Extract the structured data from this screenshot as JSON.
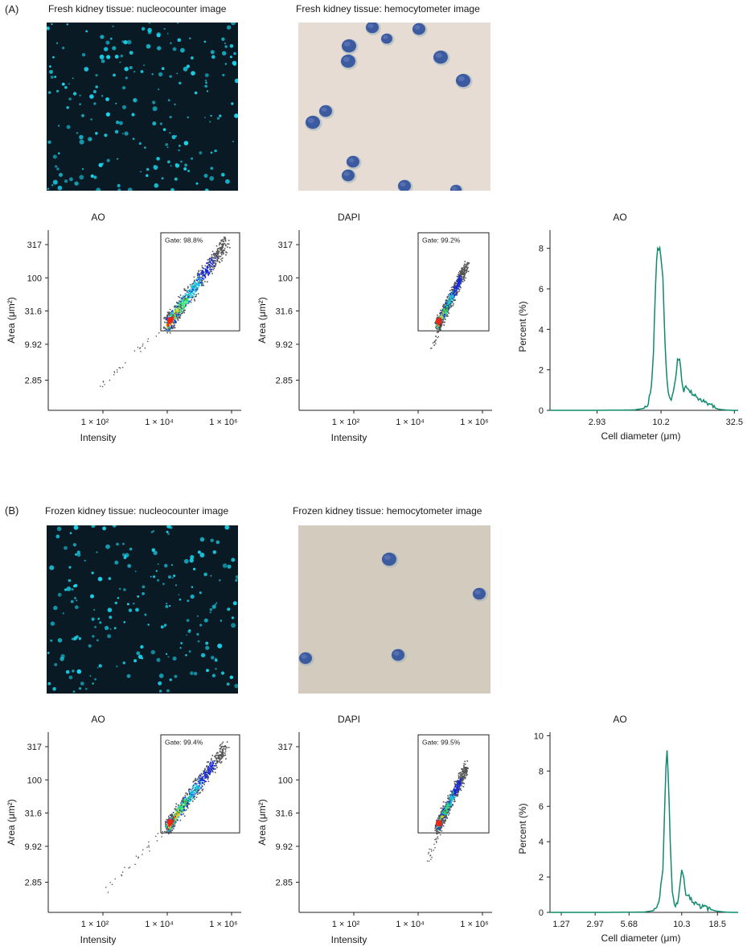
{
  "panels": [
    {
      "id": "A",
      "label": "(A)",
      "nucleocounter_caption": "Fresh kidney tissue: nucleocounter image",
      "hemocytometer_caption": "Fresh kidney tissue: hemocytometer image"
    },
    {
      "id": "B",
      "label": "(B)",
      "nucleocounter_caption": "Frozen kidney tissue: nucleocounter image",
      "hemocytometer_caption": "Frozen kidney tissue: hemocytometer image"
    }
  ],
  "colors": {
    "nucleo_bg": "#0a1a24",
    "nucleo_dot": "#19d7f0",
    "hemo_bg_fresh": "#e6dcd4",
    "hemo_bg_frozen": "#d3cbbd",
    "hemo_cell": "#3b5aa0",
    "line": "#0f8a6e",
    "density_low": "#1428d8",
    "density_mid": "#18c0e0",
    "density_high": "#e82818"
  },
  "chart_data": [
    {
      "id": "A-AO-scatter",
      "type": "scatter",
      "title": "AO",
      "xlabel": "Intensity",
      "ylabel": "Area (μm²)",
      "x_ticks": [
        "1 × 10²",
        "1 × 10⁴",
        "1 × 10⁶"
      ],
      "x_tick_values": [
        2,
        4,
        6
      ],
      "y_ticks": [
        "317",
        "100",
        "31.6",
        "9.92",
        "2.85"
      ],
      "y_tick_values": [
        2.501,
        2.0,
        1.5,
        0.997,
        0.455
      ],
      "xlog_range": [
        0.3,
        6.3
      ],
      "ylog_range": [
        0.0,
        2.72
      ],
      "gate_label": "Gate: 98.8%",
      "gate_log": {
        "x": [
          3.8,
          6.25
        ],
        "y": [
          1.2,
          2.68
        ]
      },
      "cloud": {
        "x": [
          4.0,
          5.8
        ],
        "y": [
          1.3,
          2.52
        ],
        "spread": 0.07
      },
      "tail": {
        "x": [
          1.8,
          4.0
        ],
        "y": [
          0.35,
          1.3
        ]
      }
    },
    {
      "id": "A-DAPI-scatter",
      "type": "scatter",
      "title": "DAPI",
      "xlabel": "Intensity",
      "ylabel": "Area (μm²)",
      "x_ticks": [
        "1 × 10²",
        "1 × 10⁴",
        "1 × 10⁶"
      ],
      "x_tick_values": [
        2,
        4,
        6
      ],
      "y_ticks": [
        "317",
        "100",
        "31.6",
        "9.92",
        "2.85"
      ],
      "y_tick_values": [
        2.501,
        2.0,
        1.5,
        0.997,
        0.455
      ],
      "xlog_range": [
        0.3,
        6.3
      ],
      "ylog_range": [
        0.0,
        2.72
      ],
      "gate_label": "Gate: 99.2%",
      "gate_log": {
        "x": [
          4.0,
          6.2
        ],
        "y": [
          1.2,
          2.68
        ]
      },
      "cloud": {
        "x": [
          4.6,
          5.5
        ],
        "y": [
          1.3,
          2.2
        ],
        "spread": 0.05
      },
      "tail": {
        "x": [
          4.4,
          4.7
        ],
        "y": [
          0.95,
          1.3
        ]
      }
    },
    {
      "id": "A-AO-line",
      "type": "line",
      "title": "AO",
      "xlabel": "Cell diameter (μm)",
      "ylabel": "Percent (%)",
      "x_ticks": [
        "2.93",
        "10.2",
        "32.5"
      ],
      "x_tick_values": [
        0.25,
        0.59,
        0.98
      ],
      "y_ticks": [
        "0",
        "2",
        "4",
        "6",
        "8"
      ],
      "y_tick_values": [
        0,
        2,
        4,
        6,
        8
      ],
      "ylim": [
        0,
        8.9
      ],
      "x": [
        0.0,
        0.25,
        0.45,
        0.5,
        0.52,
        0.54,
        0.55,
        0.56,
        0.57,
        0.58,
        0.585,
        0.59,
        0.6,
        0.61,
        0.62,
        0.63,
        0.64,
        0.655,
        0.67,
        0.68,
        0.69,
        0.7,
        0.71,
        0.72,
        0.73,
        0.74,
        0.76,
        0.78,
        0.8,
        0.82,
        0.84,
        0.86,
        0.88,
        0.9,
        0.93,
        0.96,
        1.0
      ],
      "y": [
        0,
        0,
        0.02,
        0.1,
        0.3,
        1.2,
        3.0,
        6.0,
        8.2,
        7.8,
        8.0,
        7.6,
        6.5,
        3.5,
        1.8,
        0.8,
        0.5,
        0.9,
        1.8,
        2.6,
        2.4,
        1.6,
        1.0,
        1.2,
        1.1,
        1.0,
        0.8,
        0.6,
        0.45,
        0.55,
        0.3,
        0.25,
        0.1,
        0.05,
        0.02,
        0,
        0
      ]
    },
    {
      "id": "B-AO-scatter",
      "type": "scatter",
      "title": "AO",
      "xlabel": "Intensity",
      "ylabel": "Area (μm²)",
      "x_ticks": [
        "1 × 10²",
        "1 × 10⁴",
        "1 × 10⁶"
      ],
      "x_tick_values": [
        2,
        4,
        6
      ],
      "y_ticks": [
        "317",
        "100",
        "31.6",
        "9.92",
        "2.85"
      ],
      "y_tick_values": [
        2.501,
        2.0,
        1.5,
        0.997,
        0.455
      ],
      "xlog_range": [
        0.3,
        6.3
      ],
      "ylog_range": [
        0.0,
        2.72
      ],
      "gate_label": "Gate: 99.4%",
      "gate_log": {
        "x": [
          3.8,
          6.25
        ],
        "y": [
          1.2,
          2.68
        ]
      },
      "cloud": {
        "x": [
          4.0,
          5.8
        ],
        "y": [
          1.3,
          2.5
        ],
        "spread": 0.06
      },
      "tail": {
        "x": [
          2.0,
          4.0
        ],
        "y": [
          0.3,
          1.3
        ]
      }
    },
    {
      "id": "B-DAPI-scatter",
      "type": "scatter",
      "title": "DAPI",
      "xlabel": "Intensity",
      "ylabel": "Area (μm²)",
      "x_ticks": [
        "1 × 10²",
        "1 × 10⁴",
        "1 × 10⁶"
      ],
      "x_tick_values": [
        2,
        4,
        6
      ],
      "y_ticks": [
        "317",
        "100",
        "31.6",
        "9.92",
        "2.85"
      ],
      "y_tick_values": [
        2.501,
        2.0,
        1.5,
        0.997,
        0.455
      ],
      "xlog_range": [
        0.3,
        6.3
      ],
      "ylog_range": [
        0.0,
        2.72
      ],
      "gate_label": "Gate: 99.5%",
      "gate_log": {
        "x": [
          4.0,
          6.2
        ],
        "y": [
          1.2,
          2.68
        ]
      },
      "cloud": {
        "x": [
          4.6,
          5.5
        ],
        "y": [
          1.3,
          2.2
        ],
        "spread": 0.05
      },
      "tail": {
        "x": [
          4.3,
          4.7
        ],
        "y": [
          0.8,
          1.3
        ]
      }
    },
    {
      "id": "B-AO-line",
      "type": "line",
      "title": "AO",
      "xlabel": "Cell diameter (μm)",
      "ylabel": "Percent (%)",
      "x_ticks": [
        "1.27",
        "2.97",
        "5.68",
        "10.3",
        "18.5"
      ],
      "x_tick_values": [
        0.06,
        0.24,
        0.42,
        0.7,
        0.89
      ],
      "y_ticks": [
        "0",
        "2",
        "4",
        "6",
        "8",
        "10"
      ],
      "y_tick_values": [
        0,
        2,
        4,
        6,
        8,
        10
      ],
      "ylim": [
        0,
        10.2
      ],
      "x": [
        0.0,
        0.3,
        0.5,
        0.55,
        0.58,
        0.6,
        0.61,
        0.62,
        0.63,
        0.64,
        0.65,
        0.66,
        0.67,
        0.68,
        0.69,
        0.7,
        0.71,
        0.72,
        0.73,
        0.74,
        0.75,
        0.76,
        0.78,
        0.8,
        0.82,
        0.84,
        0.86,
        0.88,
        0.9,
        0.93,
        0.96,
        1.0
      ],
      "y": [
        0,
        0,
        0.02,
        0.1,
        0.6,
        2.5,
        6.0,
        9.6,
        7.5,
        3.5,
        1.2,
        0.5,
        0.4,
        0.6,
        1.5,
        2.4,
        2.0,
        1.1,
        0.8,
        0.9,
        0.7,
        0.55,
        0.45,
        0.3,
        0.35,
        0.2,
        0.15,
        0.08,
        0.05,
        0.02,
        0,
        0
      ]
    }
  ]
}
